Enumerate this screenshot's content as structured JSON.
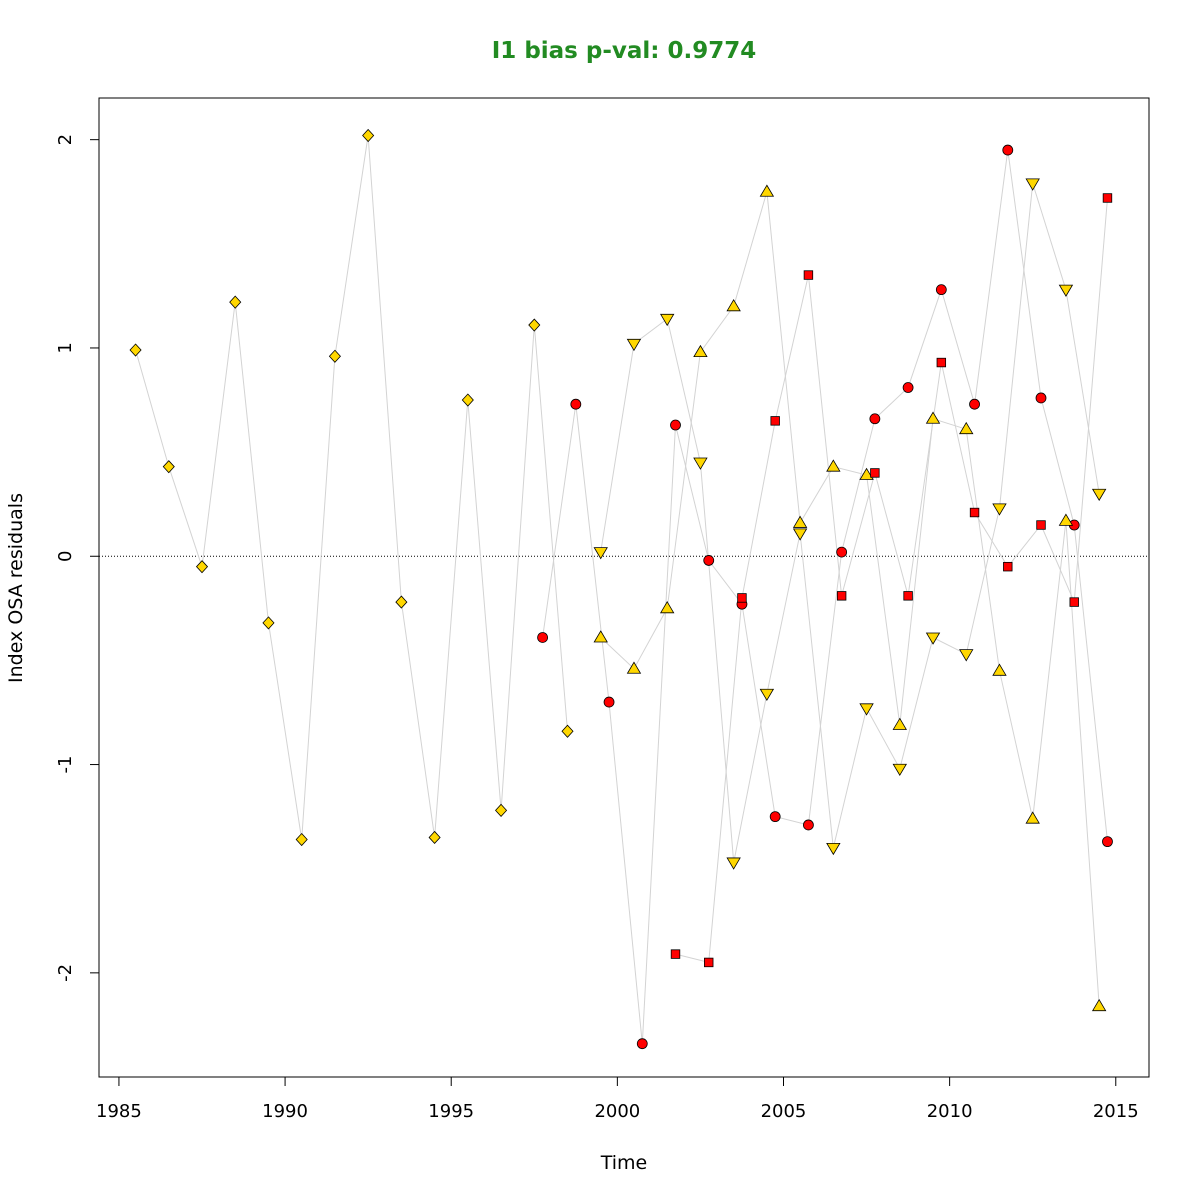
{
  "chart_data": {
    "type": "scatter",
    "title": "I1 bias p-val: 0.9774",
    "title_color": "#228B22",
    "xlabel": "Time",
    "ylabel": "Index OSA residuals",
    "xlim": [
      1984.4,
      2016.0
    ],
    "ylim": [
      -2.5,
      2.2
    ],
    "xticks": [
      1985,
      1990,
      1995,
      2000,
      2005,
      2010,
      2015
    ],
    "yticks": [
      -2,
      -1,
      0,
      1,
      2
    ],
    "reference_line_y": 0,
    "grid": false,
    "line_color": "#d3d3d3",
    "series": [
      {
        "marker": "diamond",
        "fill": "#FFD700",
        "points": [
          [
            1985.5,
            0.99
          ],
          [
            1986.5,
            0.43
          ],
          [
            1987.5,
            -0.05
          ],
          [
            1988.5,
            1.22
          ],
          [
            1989.5,
            -0.32
          ],
          [
            1990.5,
            -1.36
          ],
          [
            1991.5,
            0.96
          ],
          [
            1992.5,
            2.02
          ],
          [
            1993.5,
            -0.22
          ],
          [
            1994.5,
            -1.35
          ],
          [
            1995.5,
            0.75
          ],
          [
            1996.5,
            -1.22
          ],
          [
            1997.5,
            1.11
          ],
          [
            1998.5,
            -0.84
          ]
        ]
      },
      {
        "marker": "circle",
        "fill": "#FF0000",
        "points": [
          [
            1997.75,
            -0.39
          ],
          [
            1998.75,
            0.73
          ],
          [
            1999.75,
            -0.7
          ],
          [
            2000.75,
            -2.34
          ],
          [
            2001.75,
            0.63
          ],
          [
            2002.75,
            -0.02
          ],
          [
            2003.75,
            -0.23
          ],
          [
            2004.75,
            -1.25
          ],
          [
            2005.75,
            -1.29
          ],
          [
            2006.75,
            0.02
          ],
          [
            2007.75,
            0.66
          ],
          [
            2008.75,
            0.81
          ],
          [
            2009.75,
            1.28
          ],
          [
            2010.75,
            0.73
          ],
          [
            2011.75,
            1.95
          ],
          [
            2012.75,
            0.76
          ],
          [
            2013.75,
            0.15
          ],
          [
            2014.75,
            -1.37
          ]
        ]
      },
      {
        "marker": "triangle-down",
        "fill": "#FFD700",
        "points": [
          [
            1999.5,
            0.02
          ],
          [
            2000.5,
            1.02
          ],
          [
            2001.5,
            1.14
          ],
          [
            2002.5,
            0.45
          ],
          [
            2003.5,
            -1.47
          ],
          [
            2004.5,
            -0.66
          ],
          [
            2005.5,
            0.11
          ],
          [
            2006.5,
            -1.4
          ],
          [
            2007.5,
            -0.73
          ],
          [
            2008.5,
            -1.02
          ],
          [
            2009.5,
            -0.39
          ],
          [
            2010.5,
            -0.47
          ],
          [
            2011.5,
            0.23
          ],
          [
            2012.5,
            1.79
          ],
          [
            2013.5,
            1.28
          ],
          [
            2014.5,
            0.3
          ]
        ]
      },
      {
        "marker": "triangle-up",
        "fill": "#FFD700",
        "points": [
          [
            1999.5,
            -0.39
          ],
          [
            2000.5,
            -0.54
          ],
          [
            2001.5,
            -0.25
          ],
          [
            2002.5,
            0.98
          ],
          [
            2003.5,
            1.2
          ],
          [
            2004.5,
            1.75
          ],
          [
            2005.5,
            0.16
          ],
          [
            2006.5,
            0.43
          ],
          [
            2007.5,
            0.39
          ],
          [
            2008.5,
            -0.81
          ],
          [
            2009.5,
            0.66
          ],
          [
            2010.5,
            0.61
          ],
          [
            2011.5,
            -0.55
          ],
          [
            2012.5,
            -1.26
          ],
          [
            2013.5,
            0.17
          ],
          [
            2014.5,
            -2.16
          ]
        ]
      },
      {
        "marker": "square",
        "fill": "#FF0000",
        "points": [
          [
            2001.75,
            -1.91
          ],
          [
            2002.75,
            -1.95
          ],
          [
            2003.75,
            -0.2
          ],
          [
            2004.75,
            0.65
          ],
          [
            2005.75,
            1.35
          ],
          [
            2006.75,
            -0.19
          ],
          [
            2007.75,
            0.4
          ],
          [
            2008.75,
            -0.19
          ],
          [
            2009.75,
            0.93
          ],
          [
            2010.75,
            0.21
          ],
          [
            2011.75,
            -0.05
          ],
          [
            2012.75,
            0.15
          ],
          [
            2013.75,
            -0.22
          ],
          [
            2014.75,
            1.72
          ]
        ]
      }
    ]
  }
}
